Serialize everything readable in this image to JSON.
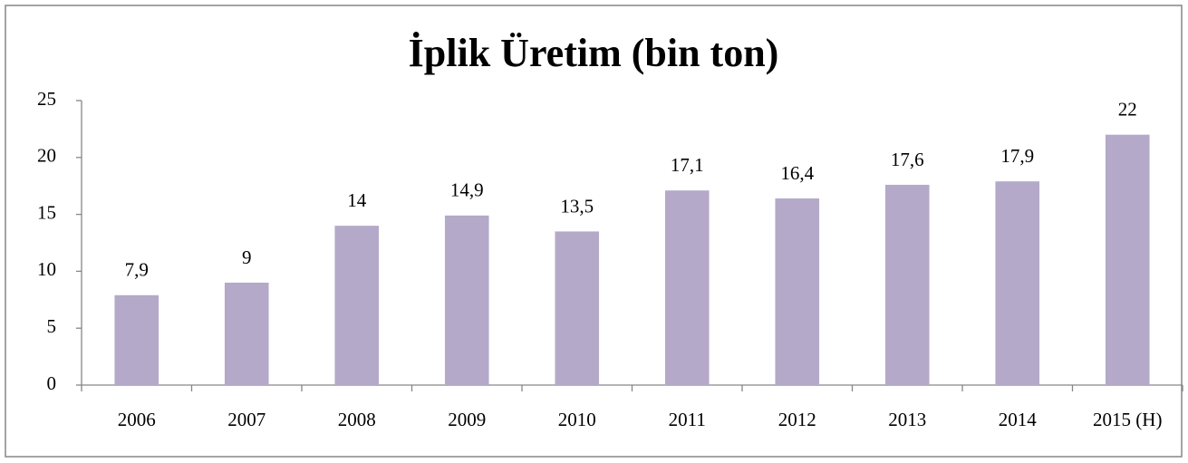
{
  "chart_data": {
    "type": "bar",
    "title": "İplik Üretim (bin ton)",
    "categories": [
      "2006",
      "2007",
      "2008",
      "2009",
      "2010",
      "2011",
      "2012",
      "2013",
      "2014",
      "2015 (H)"
    ],
    "values": [
      7.9,
      9,
      14,
      14.9,
      13.5,
      17.1,
      16.4,
      17.6,
      17.9,
      22
    ],
    "value_labels": [
      "7,9",
      "9",
      "14",
      "14,9",
      "13,5",
      "17,1",
      "16,4",
      "17,6",
      "17,9",
      "22"
    ],
    "color": "#b4a9c8",
    "ylim": [
      0,
      25
    ],
    "yticks": [
      0,
      5,
      10,
      15,
      20,
      25
    ],
    "grid": false
  }
}
